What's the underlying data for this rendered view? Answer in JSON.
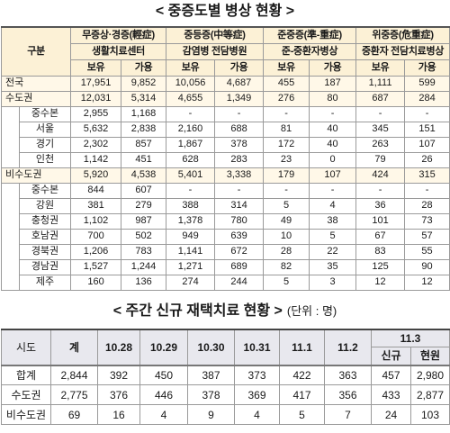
{
  "theme": {
    "header_fill": "#FCF1D6",
    "summary_fill": "#FFF8E8",
    "header2_fill": "#E8E8EE",
    "border": "#9A9A9A"
  },
  "bed_table": {
    "title": "< 중증도별 병상 현황 >",
    "header": {
      "category": "구분",
      "groups": [
        {
          "severity": "무증상·경증(輕症)",
          "facility": "생활치료센터"
        },
        {
          "severity": "중등증(中等症)",
          "facility": "감염병 전담병원"
        },
        {
          "severity": "준중증(準-重症)",
          "facility": "준-중환자병상"
        },
        {
          "severity": "위중증(危重症)",
          "facility": "중환자 전담치료병상"
        }
      ],
      "sub_headers": [
        "보유",
        "가용"
      ]
    },
    "rows": [
      {
        "region": "전국",
        "values": [
          "17,951",
          "9,852",
          "10,056",
          "4,687",
          "455",
          "187",
          "1,111",
          "599"
        ]
      },
      {
        "region": "수도권",
        "values": [
          "12,031",
          "5,314",
          "4,655",
          "1,349",
          "276",
          "80",
          "687",
          "284"
        ],
        "sub_rows": [
          {
            "region": "중수본",
            "values": [
              "2,955",
              "1,168",
              "-",
              "-",
              "-",
              "-",
              "-",
              "-"
            ]
          },
          {
            "region": "서울",
            "values": [
              "5,632",
              "2,838",
              "2,160",
              "688",
              "81",
              "40",
              "345",
              "151"
            ]
          },
          {
            "region": "경기",
            "values": [
              "2,302",
              "857",
              "1,867",
              "378",
              "172",
              "40",
              "263",
              "107"
            ]
          },
          {
            "region": "인천",
            "values": [
              "1,142",
              "451",
              "628",
              "283",
              "23",
              "0",
              "79",
              "26"
            ]
          }
        ]
      },
      {
        "region": "비수도권",
        "values": [
          "5,920",
          "4,538",
          "5,401",
          "3,338",
          "179",
          "107",
          "424",
          "315"
        ],
        "sub_rows": [
          {
            "region": "중수본",
            "values": [
              "844",
              "607",
              "-",
              "-",
              "-",
              "-",
              "-",
              "-"
            ]
          },
          {
            "region": "강원",
            "values": [
              "381",
              "279",
              "388",
              "314",
              "5",
              "4",
              "36",
              "28"
            ]
          },
          {
            "region": "충청권",
            "values": [
              "1,102",
              "987",
              "1,378",
              "780",
              "49",
              "38",
              "101",
              "73"
            ]
          },
          {
            "region": "호남권",
            "values": [
              "700",
              "502",
              "949",
              "639",
              "10",
              "5",
              "67",
              "57"
            ]
          },
          {
            "region": "경북권",
            "values": [
              "1,206",
              "783",
              "1,141",
              "672",
              "28",
              "22",
              "83",
              "55"
            ]
          },
          {
            "region": "경남권",
            "values": [
              "1,527",
              "1,244",
              "1,271",
              "689",
              "82",
              "35",
              "125",
              "90"
            ]
          },
          {
            "region": "제주",
            "values": [
              "160",
              "136",
              "274",
              "244",
              "5",
              "3",
              "12",
              "12"
            ]
          }
        ]
      }
    ]
  },
  "home_care_table": {
    "title": "< 주간 신규 재택치료 현황 >",
    "unit": "(단위 : 명)",
    "header": {
      "region": "시도",
      "total": "계",
      "dates": [
        "10.28",
        "10.29",
        "10.30",
        "10.31",
        "11.1",
        "11.2"
      ],
      "last_date": "11.3",
      "last_date_sub": [
        "신규",
        "현원"
      ]
    },
    "rows": [
      {
        "region": "합계",
        "values": [
          "2,844",
          "392",
          "450",
          "387",
          "373",
          "422",
          "363",
          "457",
          "2,980"
        ]
      },
      {
        "region": "수도권",
        "values": [
          "2,775",
          "376",
          "446",
          "378",
          "369",
          "417",
          "356",
          "433",
          "2,877"
        ]
      },
      {
        "region": "비수도권",
        "values": [
          "69",
          "16",
          "4",
          "9",
          "4",
          "5",
          "7",
          "24",
          "103"
        ]
      }
    ]
  }
}
